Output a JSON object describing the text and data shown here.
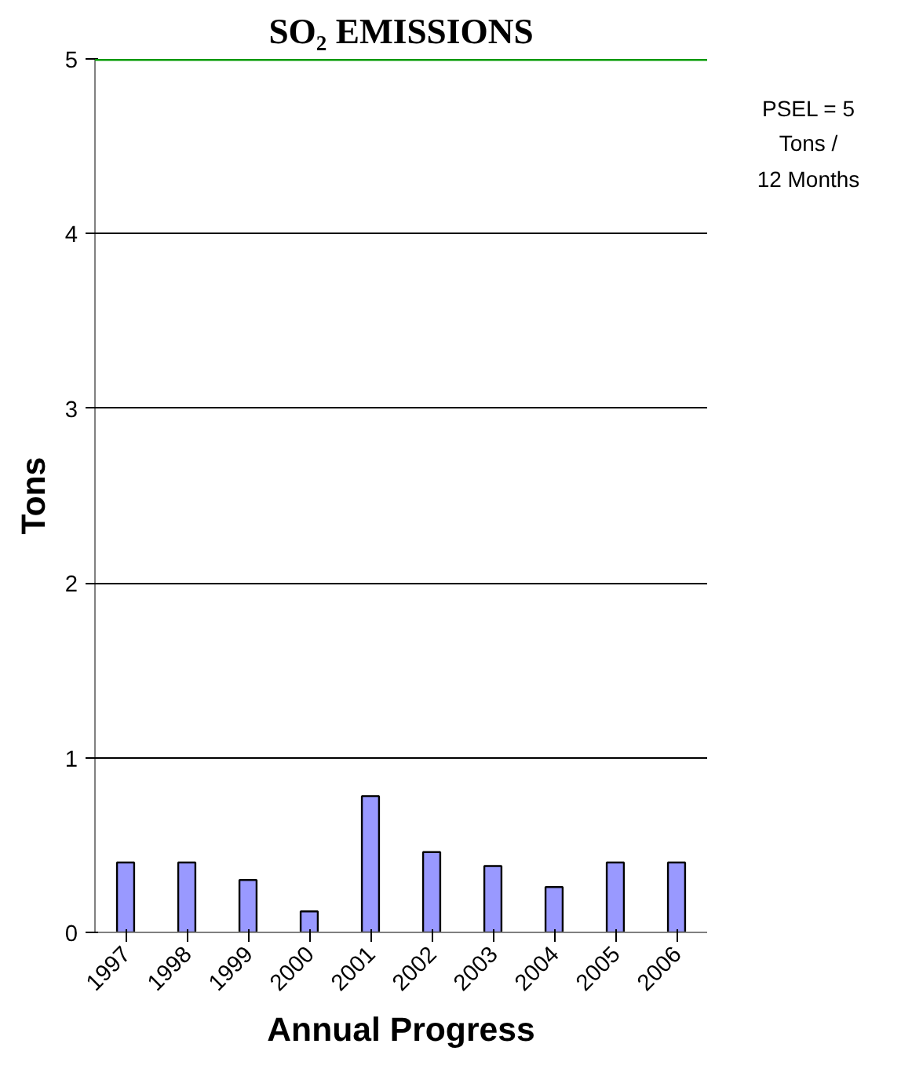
{
  "chart_data": {
    "type": "bar",
    "title": "SO₂ EMISSIONS",
    "xlabel": "Annual Progress",
    "ylabel": "Tons",
    "categories": [
      "1997",
      "1998",
      "1999",
      "2000",
      "2001",
      "2002",
      "2003",
      "2004",
      "2005",
      "2006"
    ],
    "values": [
      0.4,
      0.4,
      0.3,
      0.12,
      0.78,
      0.46,
      0.38,
      0.26,
      0.4,
      0.4
    ],
    "color": "#9999ff",
    "ylim": [
      0,
      5
    ],
    "yticks": [
      0,
      1,
      2,
      3,
      4,
      5
    ],
    "grid": "y",
    "ref_lines": [
      {
        "axis": "y",
        "value": 5,
        "label": "PSEL = 5\nTons /\n12 Months",
        "color": "#009900"
      }
    ]
  }
}
